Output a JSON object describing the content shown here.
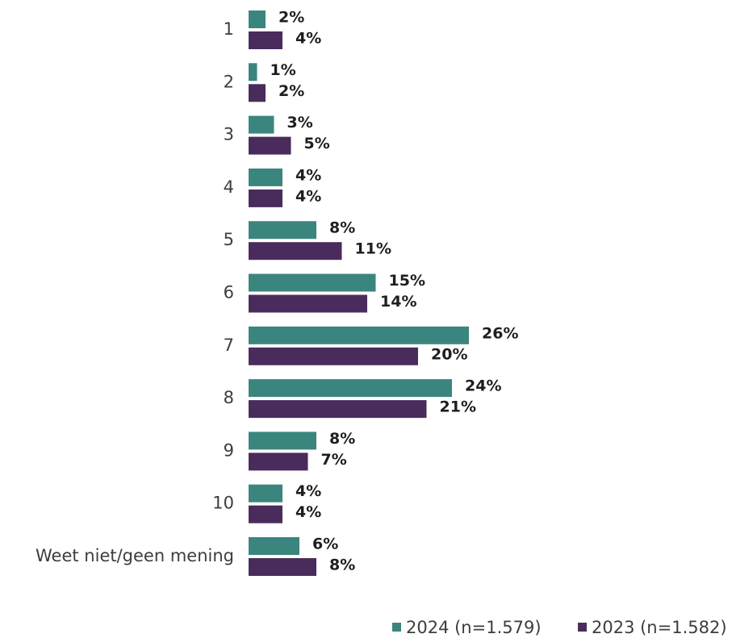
{
  "chart_data": {
    "type": "bar",
    "orientation": "horizontal",
    "categories": [
      "1",
      "2",
      "3",
      "4",
      "5",
      "6",
      "7",
      "8",
      "9",
      "10",
      "Weet niet/geen mening"
    ],
    "series": [
      {
        "name": "2024 (n=1.579)",
        "color": "#3b857f",
        "values": [
          2,
          1,
          3,
          4,
          8,
          15,
          26,
          24,
          8,
          4,
          6
        ],
        "value_labels": [
          "2%",
          "1%",
          "3%",
          "4%",
          "8%",
          "15%",
          "26%",
          "24%",
          "8%",
          "4%",
          "6%"
        ]
      },
      {
        "name": "2023 (n=1.582)",
        "color": "#4a2c5c",
        "values": [
          4,
          2,
          5,
          4,
          11,
          14,
          20,
          21,
          7,
          4,
          8
        ],
        "value_labels": [
          "4%",
          "2%",
          "5%",
          "4%",
          "11%",
          "14%",
          "20%",
          "21%",
          "7%",
          "4%",
          "8%"
        ]
      }
    ]
  }
}
